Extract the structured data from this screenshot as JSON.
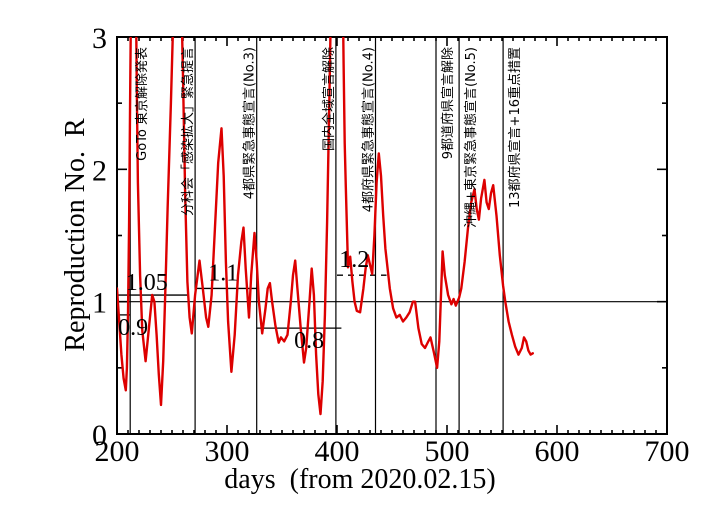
{
  "figure": {
    "background": "#ffffff"
  },
  "chart_data": {
    "type": "line",
    "title": "",
    "xlabel": "days  (from 2020.02.15)",
    "ylabel": "Reproduction No.  R",
    "xlim": [
      200,
      700
    ],
    "ylim": [
      0,
      3
    ],
    "x_major_ticks": [
      200,
      300,
      400,
      500,
      600,
      700
    ],
    "x_tick_labels": [
      "200",
      "300",
      "400",
      "500",
      "600",
      "700"
    ],
    "x_minor_step": 10,
    "y_major_ticks": [
      0,
      1,
      2,
      3
    ],
    "y_tick_labels": [
      "0",
      "1",
      "2",
      "3"
    ],
    "y_minor_ticks": [
      0.5,
      1.5,
      2.5
    ],
    "grid": false,
    "legend": false,
    "reference_line_y": 1.0,
    "curve_color": "#dd0000",
    "axis_color": "#000000",
    "series": [
      {
        "name": "Reproduction No. R",
        "points": [
          [
            200,
            1.1
          ],
          [
            202,
            0.85
          ],
          [
            204,
            0.6
          ],
          [
            206,
            0.42
          ],
          [
            208,
            0.33
          ],
          [
            209,
            0.5
          ],
          [
            210,
            0.9
          ],
          [
            211,
            1.6
          ],
          [
            212,
            2.6
          ],
          [
            213,
            3.5
          ],
          [
            217,
            3.5
          ],
          [
            218,
            2.6
          ],
          [
            219,
            1.9
          ],
          [
            221,
            1.2
          ],
          [
            223,
            0.78
          ],
          [
            226,
            0.55
          ],
          [
            229,
            0.8
          ],
          [
            232,
            1.05
          ],
          [
            234,
            1.0
          ],
          [
            236,
            0.75
          ],
          [
            238,
            0.45
          ],
          [
            240,
            0.22
          ],
          [
            242,
            0.55
          ],
          [
            244,
            1.1
          ],
          [
            246,
            1.7
          ],
          [
            249,
            2.5
          ],
          [
            251,
            3.1
          ],
          [
            252,
            3.5
          ],
          [
            258,
            3.5
          ],
          [
            260,
            2.7
          ],
          [
            262,
            1.8
          ],
          [
            264,
            1.15
          ],
          [
            266,
            0.88
          ],
          [
            268,
            0.76
          ],
          [
            271,
            1.05
          ],
          [
            275,
            1.31
          ],
          [
            278,
            1.1
          ],
          [
            281,
            0.88
          ],
          [
            283,
            0.81
          ],
          [
            286,
            1.05
          ],
          [
            289,
            1.55
          ],
          [
            292,
            2.05
          ],
          [
            295,
            2.31
          ],
          [
            297,
            1.95
          ],
          [
            299,
            1.3
          ],
          [
            301,
            0.85
          ],
          [
            304,
            0.47
          ],
          [
            307,
            0.75
          ],
          [
            310,
            1.2
          ],
          [
            313,
            1.45
          ],
          [
            315,
            1.56
          ],
          [
            317,
            1.25
          ],
          [
            320,
            0.88
          ],
          [
            322,
            1.2
          ],
          [
            325,
            1.52
          ],
          [
            327,
            1.3
          ],
          [
            329,
            1.0
          ],
          [
            332,
            0.76
          ],
          [
            335,
            0.95
          ],
          [
            337,
            1.1
          ],
          [
            339,
            1.14
          ],
          [
            341,
            1.0
          ],
          [
            344,
            0.82
          ],
          [
            347,
            0.69
          ],
          [
            349,
            0.73
          ],
          [
            352,
            0.7
          ],
          [
            355,
            0.75
          ],
          [
            358,
            1.0
          ],
          [
            360,
            1.2
          ],
          [
            362,
            1.31
          ],
          [
            364,
            1.1
          ],
          [
            367,
            0.8
          ],
          [
            370,
            0.54
          ],
          [
            372,
            0.65
          ],
          [
            375,
            1.0
          ],
          [
            377,
            1.25
          ],
          [
            379,
            1.05
          ],
          [
            381,
            0.6
          ],
          [
            383,
            0.3
          ],
          [
            385,
            0.15
          ],
          [
            387,
            0.4
          ],
          [
            389,
            0.9
          ],
          [
            391,
            1.6
          ],
          [
            393,
            2.5
          ],
          [
            395,
            3.5
          ],
          [
            405,
            3.5
          ],
          [
            406,
            2.8
          ],
          [
            407,
            2.2
          ],
          [
            408,
            1.87
          ],
          [
            410,
            1.26
          ],
          [
            411,
            1.3
          ],
          [
            412,
            1.34
          ],
          [
            414,
            1.15
          ],
          [
            416,
            1.0
          ],
          [
            418,
            0.93
          ],
          [
            421,
            0.92
          ],
          [
            424,
            1.1
          ],
          [
            426,
            1.25
          ],
          [
            428,
            1.35
          ],
          [
            430,
            1.28
          ],
          [
            432,
            1.21
          ],
          [
            434,
            1.5
          ],
          [
            436,
            1.9
          ],
          [
            438,
            2.12
          ],
          [
            440,
            1.95
          ],
          [
            442,
            1.65
          ],
          [
            444,
            1.4
          ],
          [
            448,
            1.1
          ],
          [
            451,
            0.95
          ],
          [
            454,
            0.88
          ],
          [
            457,
            0.9
          ],
          [
            460,
            0.85
          ],
          [
            463,
            0.88
          ],
          [
            466,
            0.92
          ],
          [
            469,
            1.0
          ],
          [
            471,
            1.0
          ],
          [
            474,
            0.8
          ],
          [
            477,
            0.68
          ],
          [
            480,
            0.65
          ],
          [
            483,
            0.7
          ],
          [
            485,
            0.73
          ],
          [
            488,
            0.62
          ],
          [
            491,
            0.5
          ],
          [
            493,
            0.7
          ],
          [
            496,
            1.38
          ],
          [
            498,
            1.2
          ],
          [
            501,
            1.05
          ],
          [
            504,
            0.98
          ],
          [
            506,
            1.02
          ],
          [
            508,
            0.97
          ],
          [
            511,
            1.03
          ],
          [
            513,
            1.1
          ],
          [
            516,
            1.3
          ],
          [
            519,
            1.55
          ],
          [
            522,
            1.75
          ],
          [
            525,
            1.85
          ],
          [
            527,
            1.7
          ],
          [
            529,
            1.62
          ],
          [
            531,
            1.78
          ],
          [
            534,
            1.92
          ],
          [
            536,
            1.75
          ],
          [
            538,
            1.7
          ],
          [
            540,
            1.82
          ],
          [
            542,
            1.88
          ],
          [
            545,
            1.65
          ],
          [
            548,
            1.35
          ],
          [
            551,
            1.12
          ],
          [
            553,
            1.0
          ],
          [
            556,
            0.85
          ],
          [
            559,
            0.75
          ],
          [
            562,
            0.66
          ],
          [
            565,
            0.6
          ],
          [
            568,
            0.65
          ],
          [
            570,
            0.73
          ],
          [
            572,
            0.7
          ],
          [
            574,
            0.63
          ],
          [
            576,
            0.6
          ],
          [
            578,
            0.61
          ]
        ]
      }
    ],
    "event_lines": [
      {
        "day": 212,
        "label": "GoTo 東京解除発表",
        "side": "right"
      },
      {
        "day": 271,
        "label": "分科会「感染拡大」緊急提言",
        "side": "left"
      },
      {
        "day": 327,
        "label": "4都県緊急事態宣言(No.3)",
        "side": "left"
      },
      {
        "day": 399,
        "label": "国内全域宣言解除",
        "side": "left"
      },
      {
        "day": 435,
        "label": "4都府県緊急事態宣言(No.4)",
        "side": "left"
      },
      {
        "day": 490,
        "label": "9都道府県宣言解除",
        "side": "right"
      },
      {
        "day": 511,
        "label": "沖縄+東京緊急事態宣言(No.5)",
        "side": "right"
      },
      {
        "day": 551,
        "label": "13都府県宣言+16重点措置",
        "side": "right"
      }
    ],
    "level_annotations": [
      {
        "label": "0.9",
        "value": 0.9,
        "from_day": 200,
        "to_day": 212,
        "style": "solid",
        "text_day": 201,
        "text_dy": 20
      },
      {
        "label": "1.05",
        "value": 1.05,
        "from_day": 200,
        "to_day": 264,
        "style": "solid",
        "text_day": 208,
        "text_dy": -5
      },
      {
        "label": "1.1",
        "value": 1.1,
        "from_day": 271,
        "to_day": 327,
        "style": "solid",
        "text_day": 283,
        "text_dy": -8
      },
      {
        "label": "0.8",
        "value": 0.8,
        "from_day": 327,
        "to_day": 404,
        "style": "solid",
        "text_day": 361,
        "text_dy": 20
      },
      {
        "label": "1.2",
        "value": 1.2,
        "from_day": 400,
        "to_day": 445,
        "style": "dashed",
        "text_day": 402,
        "text_dy": -8
      }
    ]
  }
}
